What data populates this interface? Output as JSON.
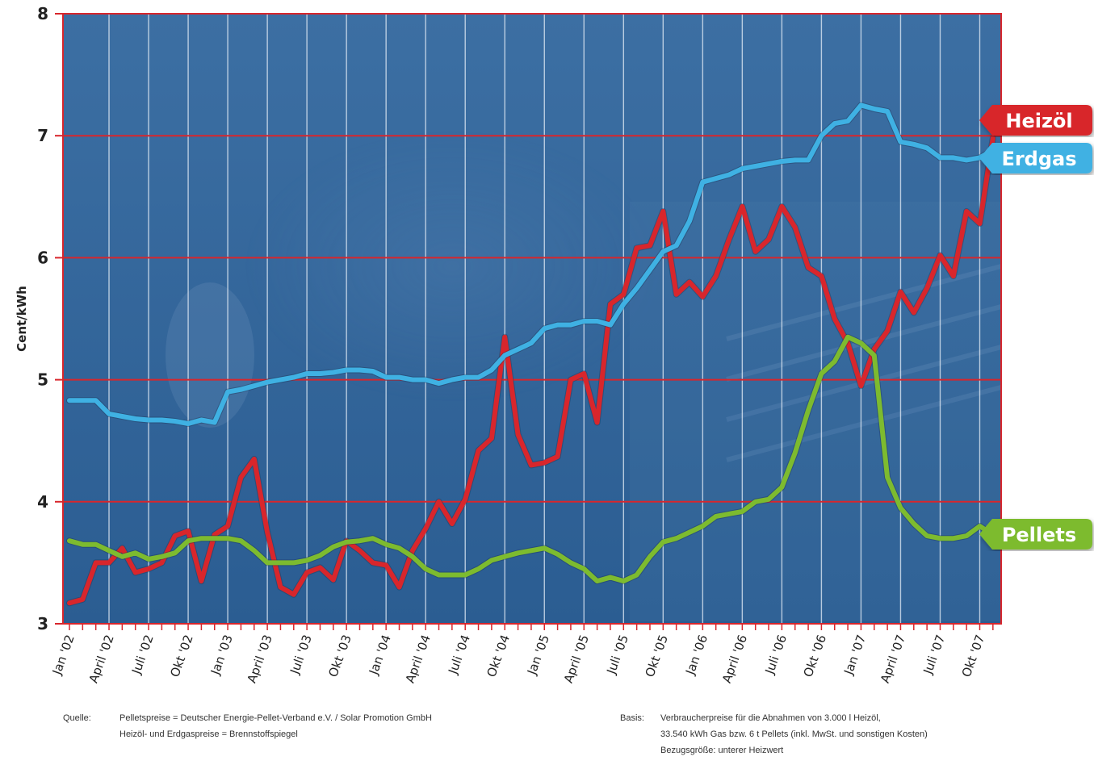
{
  "chart_data": {
    "type": "line",
    "title": "",
    "ylabel": "Cent/kWh",
    "xlabel": "",
    "ylim": [
      3,
      8
    ],
    "yticks": [
      "3",
      "4",
      "5",
      "6",
      "7",
      "8"
    ],
    "x_labels": [
      "Jan '02",
      "April '02",
      "Juli '02",
      "Okt '02",
      "Jan '03",
      "April '03",
      "Juli '03",
      "Okt '03",
      "Jan '04",
      "April '04",
      "Juli '04",
      "Okt '04",
      "Jan '05",
      "April '05",
      "Juli '05",
      "Okt '05",
      "Jan '06",
      "April '06",
      "Juli '06",
      "Okt '06",
      "Jan '07",
      "April '07",
      "Juli '07",
      "Okt '07"
    ],
    "grid": true,
    "legend_placement": "right, at line ends",
    "series": [
      {
        "name": "Heizöl",
        "color": "#d8262c",
        "points": [
          [
            0,
            3.17
          ],
          [
            1,
            3.2
          ],
          [
            2,
            3.5
          ],
          [
            3,
            3.5
          ],
          [
            4,
            3.62
          ],
          [
            5,
            3.42
          ],
          [
            6,
            3.45
          ],
          [
            7,
            3.5
          ],
          [
            8,
            3.72
          ],
          [
            9,
            3.76
          ],
          [
            10,
            3.35
          ],
          [
            11,
            3.73
          ],
          [
            12,
            3.8
          ],
          [
            13,
            4.2
          ],
          [
            14,
            4.35
          ],
          [
            15,
            3.75
          ],
          [
            16,
            3.3
          ],
          [
            17,
            3.24
          ],
          [
            18,
            3.42
          ],
          [
            19,
            3.46
          ],
          [
            20,
            3.36
          ],
          [
            21,
            3.68
          ],
          [
            22,
            3.6
          ],
          [
            23,
            3.5
          ],
          [
            24,
            3.48
          ],
          [
            25,
            3.3
          ],
          [
            26,
            3.6
          ],
          [
            27,
            3.78
          ],
          [
            28,
            4.0
          ],
          [
            29,
            3.82
          ],
          [
            30,
            4.02
          ],
          [
            31,
            4.42
          ],
          [
            32,
            4.52
          ],
          [
            33,
            5.35
          ],
          [
            34,
            4.55
          ],
          [
            35,
            4.3
          ],
          [
            36,
            4.32
          ],
          [
            37,
            4.37
          ],
          [
            38,
            5.0
          ],
          [
            39,
            5.05
          ],
          [
            40,
            4.65
          ],
          [
            41,
            5.62
          ],
          [
            42,
            5.7
          ],
          [
            43,
            6.08
          ],
          [
            44,
            6.1
          ],
          [
            45,
            6.38
          ],
          [
            46,
            5.7
          ],
          [
            47,
            5.8
          ],
          [
            48,
            5.68
          ],
          [
            49,
            5.85
          ],
          [
            50,
            6.15
          ],
          [
            51,
            6.42
          ],
          [
            52,
            6.05
          ],
          [
            53,
            6.15
          ],
          [
            54,
            6.42
          ],
          [
            55,
            6.25
          ],
          [
            56,
            5.92
          ],
          [
            57,
            5.85
          ],
          [
            58,
            5.5
          ],
          [
            59,
            5.3
          ],
          [
            60,
            4.95
          ],
          [
            61,
            5.25
          ],
          [
            62,
            5.4
          ],
          [
            63,
            5.72
          ],
          [
            64,
            5.55
          ],
          [
            65,
            5.75
          ],
          [
            66,
            6.02
          ],
          [
            67,
            5.85
          ],
          [
            68,
            6.38
          ],
          [
            69,
            6.28
          ],
          [
            70,
            6.98
          ]
        ]
      },
      {
        "name": "Erdgas",
        "color": "#3fb1e3",
        "points": [
          [
            0,
            4.83
          ],
          [
            1,
            4.83
          ],
          [
            2,
            4.83
          ],
          [
            3,
            4.72
          ],
          [
            4,
            4.7
          ],
          [
            5,
            4.68
          ],
          [
            6,
            4.67
          ],
          [
            7,
            4.67
          ],
          [
            8,
            4.66
          ],
          [
            9,
            4.64
          ],
          [
            10,
            4.67
          ],
          [
            11,
            4.65
          ],
          [
            12,
            4.9
          ],
          [
            13,
            4.92
          ],
          [
            14,
            4.95
          ],
          [
            15,
            4.98
          ],
          [
            16,
            5.0
          ],
          [
            17,
            5.02
          ],
          [
            18,
            5.05
          ],
          [
            19,
            5.05
          ],
          [
            20,
            5.06
          ],
          [
            21,
            5.08
          ],
          [
            22,
            5.08
          ],
          [
            23,
            5.07
          ],
          [
            24,
            5.02
          ],
          [
            25,
            5.02
          ],
          [
            26,
            5.0
          ],
          [
            27,
            5.0
          ],
          [
            28,
            4.97
          ],
          [
            29,
            5.0
          ],
          [
            30,
            5.02
          ],
          [
            31,
            5.02
          ],
          [
            32,
            5.08
          ],
          [
            33,
            5.2
          ],
          [
            34,
            5.25
          ],
          [
            35,
            5.3
          ],
          [
            36,
            5.42
          ],
          [
            37,
            5.45
          ],
          [
            38,
            5.45
          ],
          [
            39,
            5.48
          ],
          [
            40,
            5.48
          ],
          [
            41,
            5.45
          ],
          [
            42,
            5.62
          ],
          [
            43,
            5.75
          ],
          [
            44,
            5.9
          ],
          [
            45,
            6.05
          ],
          [
            46,
            6.1
          ],
          [
            47,
            6.3
          ],
          [
            48,
            6.62
          ],
          [
            49,
            6.65
          ],
          [
            50,
            6.68
          ],
          [
            51,
            6.73
          ],
          [
            52,
            6.75
          ],
          [
            53,
            6.77
          ],
          [
            54,
            6.79
          ],
          [
            55,
            6.8
          ],
          [
            56,
            6.8
          ],
          [
            57,
            7.0
          ],
          [
            58,
            7.1
          ],
          [
            59,
            7.12
          ],
          [
            60,
            7.25
          ],
          [
            61,
            7.22
          ],
          [
            62,
            7.2
          ],
          [
            63,
            6.95
          ],
          [
            64,
            6.93
          ],
          [
            65,
            6.9
          ],
          [
            66,
            6.82
          ],
          [
            67,
            6.82
          ],
          [
            68,
            6.8
          ],
          [
            69,
            6.82
          ],
          [
            70,
            6.88
          ]
        ]
      },
      {
        "name": "Pellets",
        "color": "#7dbb2f",
        "points": [
          [
            0,
            3.68
          ],
          [
            1,
            3.65
          ],
          [
            2,
            3.65
          ],
          [
            3,
            3.6
          ],
          [
            4,
            3.55
          ],
          [
            5,
            3.58
          ],
          [
            6,
            3.53
          ],
          [
            7,
            3.55
          ],
          [
            8,
            3.58
          ],
          [
            9,
            3.68
          ],
          [
            10,
            3.7
          ],
          [
            11,
            3.7
          ],
          [
            12,
            3.7
          ],
          [
            13,
            3.68
          ],
          [
            14,
            3.6
          ],
          [
            15,
            3.5
          ],
          [
            16,
            3.5
          ],
          [
            17,
            3.5
          ],
          [
            18,
            3.52
          ],
          [
            19,
            3.56
          ],
          [
            20,
            3.63
          ],
          [
            21,
            3.67
          ],
          [
            22,
            3.68
          ],
          [
            23,
            3.7
          ],
          [
            24,
            3.65
          ],
          [
            25,
            3.62
          ],
          [
            26,
            3.55
          ],
          [
            27,
            3.45
          ],
          [
            28,
            3.4
          ],
          [
            29,
            3.4
          ],
          [
            30,
            3.4
          ],
          [
            31,
            3.45
          ],
          [
            32,
            3.52
          ],
          [
            33,
            3.55
          ],
          [
            34,
            3.58
          ],
          [
            35,
            3.6
          ],
          [
            36,
            3.62
          ],
          [
            37,
            3.57
          ],
          [
            38,
            3.5
          ],
          [
            39,
            3.45
          ],
          [
            40,
            3.35
          ],
          [
            41,
            3.38
          ],
          [
            42,
            3.35
          ],
          [
            43,
            3.4
          ],
          [
            44,
            3.55
          ],
          [
            45,
            3.67
          ],
          [
            46,
            3.7
          ],
          [
            47,
            3.75
          ],
          [
            48,
            3.8
          ],
          [
            49,
            3.88
          ],
          [
            50,
            3.9
          ],
          [
            51,
            3.92
          ],
          [
            52,
            4.0
          ],
          [
            53,
            4.02
          ],
          [
            54,
            4.12
          ],
          [
            55,
            4.4
          ],
          [
            56,
            4.75
          ],
          [
            57,
            5.05
          ],
          [
            58,
            5.15
          ],
          [
            59,
            5.35
          ],
          [
            60,
            5.3
          ],
          [
            61,
            5.2
          ],
          [
            62,
            4.2
          ],
          [
            63,
            3.95
          ],
          [
            64,
            3.82
          ],
          [
            65,
            3.72
          ],
          [
            66,
            3.7
          ],
          [
            67,
            3.7
          ],
          [
            68,
            3.72
          ],
          [
            69,
            3.8
          ],
          [
            70,
            3.73
          ]
        ]
      }
    ]
  },
  "footer": {
    "source_label": "Quelle:",
    "source_line1": "Pelletspreise = Deutscher Energie-Pellet-Verband e.V. / Solar Promotion GmbH",
    "source_line2": "Heizöl- und Erdgaspreise = Brennstoffspiegel",
    "basis_label": "Basis:",
    "basis_line1": "Verbraucherpreise für die Abnahmen von 3.000 l Heizöl,",
    "basis_line2": "33.540 kWh Gas bzw. 6 t Pellets (inkl. MwSt. und sonstigen Kosten)",
    "basis_line3": "Bezugsgröße: unterer Heizwert"
  }
}
